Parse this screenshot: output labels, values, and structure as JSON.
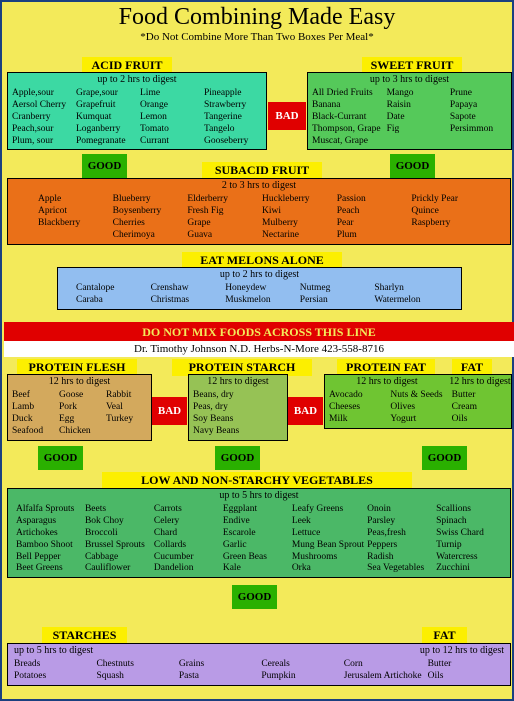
{
  "title": "Food Combining Made Easy",
  "subtitle": "*Do Not Combine More Than Two Boxes Per Meal*",
  "labels": {
    "acid": "ACID FRUIT",
    "sweet": "SWEET FRUIT",
    "subacid": "SUBACID FRUIT",
    "melon": "EAT MELONS ALONE",
    "pflesh": "PROTEIN FLESH",
    "pstarch": "PROTEIN  STARCH",
    "pfat": "PROTEIN FAT",
    "fat": "FAT",
    "low": "LOW AND NON-STARCHY VEGETABLES",
    "starch": "STARCHES",
    "fat2": "FAT",
    "bad": "BAD",
    "good": "GOOD"
  },
  "digest": {
    "acid": "up to 2 hrs to digest",
    "sweet": "up to 3 hrs to digest",
    "subacid": "2 to 3 hrs to digest",
    "melon": "up to 2 hrs to digest",
    "pflesh": "12 hrs to digest",
    "pstarch": "12 hrs to digest",
    "pfat": "12 hrs to digest",
    "fat": "12 hrs to digest",
    "low": "up to 5 hrs to digest",
    "starch": "up to 5 hrs to digest",
    "fat2": "up to 12 hrs to digest"
  },
  "redline": "DO NOT MIX FOODS ACROSS THIS LINE",
  "credit": "Dr. Timothy Johnson N.D. Herbs-N-More 423-558-8716",
  "acid": [
    [
      "Apple,sour",
      "Aersol Cherry",
      "Cranberry",
      "Peach,sour",
      "Plum, sour"
    ],
    [
      "Grape,sour",
      "Grapefruit",
      "Kumquat",
      "Loganberry",
      "Pomegranate"
    ],
    [
      "Lime",
      "Orange",
      "Lemon",
      "Tomato",
      "Currant"
    ],
    [
      "Pineapple",
      "Strawberry",
      "Tangerine",
      "Tangelo",
      "Gooseberry"
    ]
  ],
  "sweet": [
    [
      "All Dried Fruits",
      "Banana",
      "Black-Currant",
      "Thompson, Grape",
      "Muscat, Grape"
    ],
    [
      "Mango",
      "Raisin",
      "Date",
      "Fig"
    ],
    [
      "Prune",
      "Papaya",
      "Sapote",
      "Persimmon"
    ]
  ],
  "subacid": [
    [
      "Apple",
      "Apricot",
      "Blackberry"
    ],
    [
      "Blueberry",
      "Boysenberry",
      "Cherries",
      "Cherimoya"
    ],
    [
      "Elderberry",
      "Fresh Fig",
      "Grape",
      "Guava"
    ],
    [
      "Huckleberry",
      "Kiwi",
      "Mulberry",
      "Nectarine"
    ],
    [
      "Passion",
      "Peach",
      "Pear",
      "Plum"
    ],
    [
      "Prickly Pear",
      "Quince",
      "Raspberry"
    ]
  ],
  "melon": [
    [
      "Cantalope",
      "Caraba"
    ],
    [
      "Crenshaw",
      "Christmas"
    ],
    [
      "Honeydew",
      "Muskmelon"
    ],
    [
      "Nutmeg",
      "Persian"
    ],
    [
      "Sharlyn",
      "Watermelon"
    ]
  ],
  "pflesh": [
    [
      "Beef",
      "Lamb",
      "Duck",
      "Seafood"
    ],
    [
      "Goose",
      "Pork",
      "Egg",
      "Chicken"
    ],
    [
      "Rabbit",
      "Veal",
      "Turkey"
    ]
  ],
  "pstarch": [
    [
      "Beans, dry",
      "Peas, dry",
      "Soy Beans",
      "Navy Beans"
    ]
  ],
  "pfat": [
    [
      "Avocado",
      "Cheeses",
      "Milk"
    ],
    [
      "Nuts & Seeds",
      "Olives",
      "Yogurt"
    ]
  ],
  "fat": [
    [
      "Butter",
      "Cream",
      "Oils"
    ]
  ],
  "low": [
    [
      "Alfalfa Sprouts",
      "Asparagus",
      "Artichokes",
      "Bamboo Shoot",
      "Bell Pepper",
      "Beet Greens"
    ],
    [
      "Beets",
      "Bok Choy",
      "Broccoli",
      "Brussel Sprouts",
      "Cabbage",
      "Cauliflower"
    ],
    [
      "Carrots",
      "Celery",
      "Chard",
      "Collards",
      "Cucumber",
      "Dandelion"
    ],
    [
      "Eggplant",
      "Endive",
      "Escarole",
      "Garlic",
      "Green Beas",
      "Kale"
    ],
    [
      "Leafy Greens",
      "Leek",
      "Lettuce",
      "Mung Bean Sprout",
      "Mushrooms",
      "Orka"
    ],
    [
      "Onoin",
      "Parsley",
      "Peas,fresh",
      "Peppers",
      "Radish",
      "Sea Vegetables"
    ],
    [
      "Scallions",
      "Spinach",
      "Swiss Chard",
      "Turnip",
      "Watercress",
      "Zucchini"
    ]
  ],
  "starch": [
    [
      "Breads",
      "Potatoes"
    ],
    [
      "Chestnuts",
      "Squash"
    ],
    [
      "Grains",
      "Pasta"
    ],
    [
      "Cereals",
      "Pumpkin"
    ],
    [
      "Corn",
      "Jerusalem Artichoke"
    ]
  ],
  "fat2": [
    [
      "Butter",
      "Oils"
    ]
  ],
  "colors": {
    "border": "#1a4080",
    "bg": "#f3ea5a",
    "yellow": "#fcef00",
    "acid": "#3cd9a3",
    "sweet": "#55c95a",
    "subacid": "#ea7018",
    "melon": "#92bef0",
    "red": "#e00000",
    "good": "#2ab000",
    "pflesh": "#d3a95d",
    "pstarch": "#96c255",
    "pfat": "#6fc532",
    "low": "#4bb867",
    "starch": "#b99be6"
  }
}
